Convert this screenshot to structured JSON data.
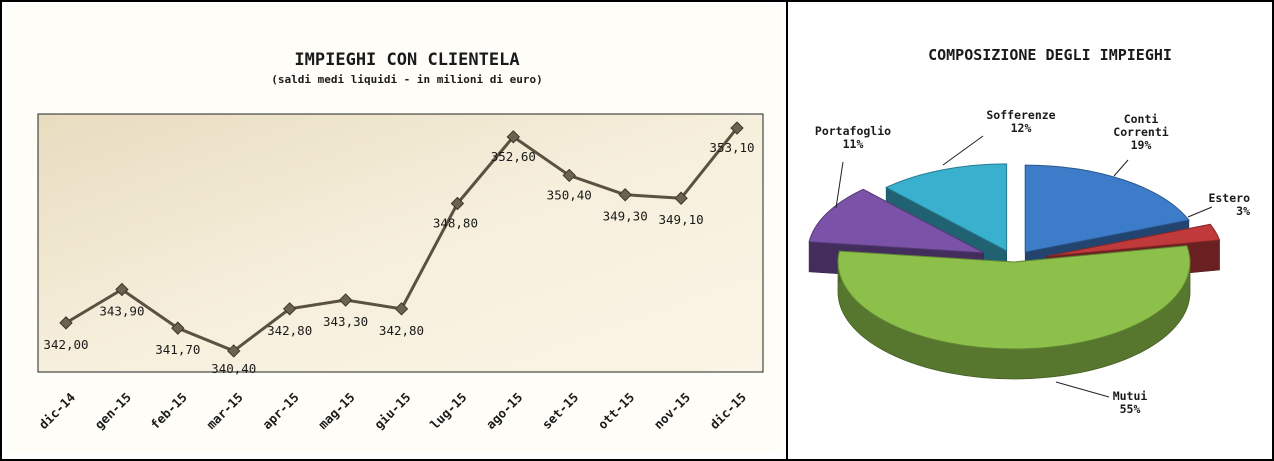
{
  "chart_data": [
    {
      "type": "line",
      "title": "IMPIEGHI  CON CLIENTELA",
      "subtitle": "(saldi medi liquidi - in milioni di euro)",
      "categories": [
        "dic-14",
        "gen-15",
        "feb-15",
        "mar-15",
        "apr-15",
        "mag-15",
        "giu-15",
        "lug-15",
        "ago-15",
        "set-15",
        "ott-15",
        "nov-15",
        "dic-15"
      ],
      "values": [
        342.0,
        343.9,
        341.7,
        340.4,
        342.8,
        343.3,
        342.8,
        348.8,
        352.6,
        350.4,
        349.3,
        349.1,
        353.1
      ],
      "value_labels": [
        "342,00",
        "343,90",
        "341,70",
        "340,40",
        "342,80",
        "343,30",
        "342,80",
        "348,80",
        "352,60",
        "350,40",
        "349,30",
        "349,10",
        "353,10"
      ],
      "ylim": [
        339.2,
        353.9
      ],
      "grid": false,
      "colors": {
        "line": "#5a5140",
        "plot_bg": "#f3e9d2"
      }
    },
    {
      "type": "pie",
      "title": "COMPOSIZIONE DEGLI IMPIEGHI",
      "slices": [
        {
          "name": "Conti Correnti",
          "label_lines": [
            "Conti",
            "Correnti"
          ],
          "value": 19,
          "pct_label": "19%",
          "color": "#3d7cc9"
        },
        {
          "name": "Estero",
          "label_lines": [
            "Estero"
          ],
          "value": 3,
          "pct_label": "3%",
          "color": "#c0393b"
        },
        {
          "name": "Mutui",
          "label_lines": [
            "Mutui"
          ],
          "value": 55,
          "pct_label": "55%",
          "color": "#8cc04a"
        },
        {
          "name": "Portafoglio",
          "label_lines": [
            "Portafoglio"
          ],
          "value": 11,
          "pct_label": "11%",
          "color": "#7a52a8"
        },
        {
          "name": "Sofferenze",
          "label_lines": [
            "Sofferenze"
          ],
          "value": 12,
          "pct_label": "12%",
          "color": "#3ab0cf"
        }
      ]
    }
  ]
}
